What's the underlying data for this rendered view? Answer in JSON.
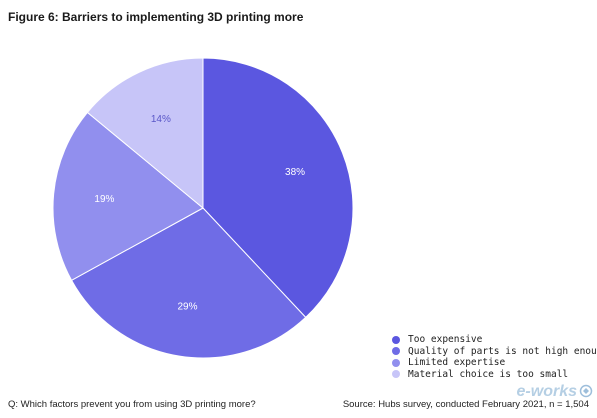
{
  "title": "Figure 6: Barriers to implementing 3D printing more",
  "chart_data": {
    "type": "pie",
    "title": "Figure 6: Barriers to implementing 3D printing more",
    "start_angle_deg": 0,
    "direction": "clockwise",
    "slices": [
      {
        "label": "Too expensive",
        "value": 38,
        "display": "38%",
        "color": "#5b57e0"
      },
      {
        "label": "Quality of parts is not high enough",
        "value": 29,
        "display": "29%",
        "color": "#6f6ce6"
      },
      {
        "label": "Limited expertise",
        "value": 19,
        "display": "19%",
        "color": "#918fee"
      },
      {
        "label": "Material choice is too small",
        "value": 14,
        "display": "14%",
        "color": "#c7c5f8"
      }
    ],
    "legend_position": "bottom-right"
  },
  "footer": {
    "question": "Q: Which factors prevent you from using 3D printing more?",
    "source": "Source: Hubs survey, conducted February 2021, n = 1,504"
  },
  "watermark": {
    "text": "e-works"
  }
}
